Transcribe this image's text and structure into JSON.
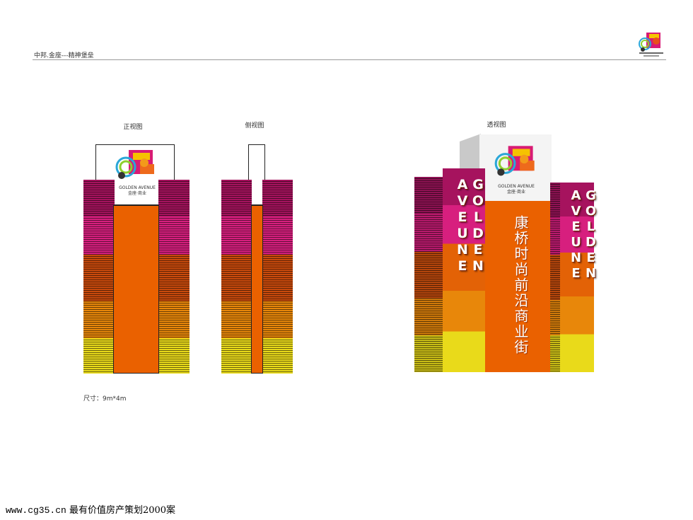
{
  "header": {
    "title": "中邦.金座---精神堡垒"
  },
  "views": {
    "front": "正视图",
    "side": "侧视图",
    "perspective": "透视图"
  },
  "dimensions": "尺寸：9m*4m",
  "brand": {
    "name_en": "GOLDEN AVENUE",
    "name_cn": "金座·商业"
  },
  "signage": {
    "left_column": "GOLDEN AVEUNE",
    "right_column": "GOLDEN AVEUNE",
    "center_slogan": "康桥时尚前沿商业街"
  },
  "footer": {
    "url": "www.cg35.cn",
    "text": "最有价值房产策划2000案"
  },
  "colors": {
    "magenta": "#a6135e",
    "pink": "#d71f7e",
    "orange_dark": "#c94a0c",
    "orange": "#e36206",
    "amber": "#e8870a",
    "yellow": "#e9da1a",
    "core_orange": "#ea6100"
  }
}
